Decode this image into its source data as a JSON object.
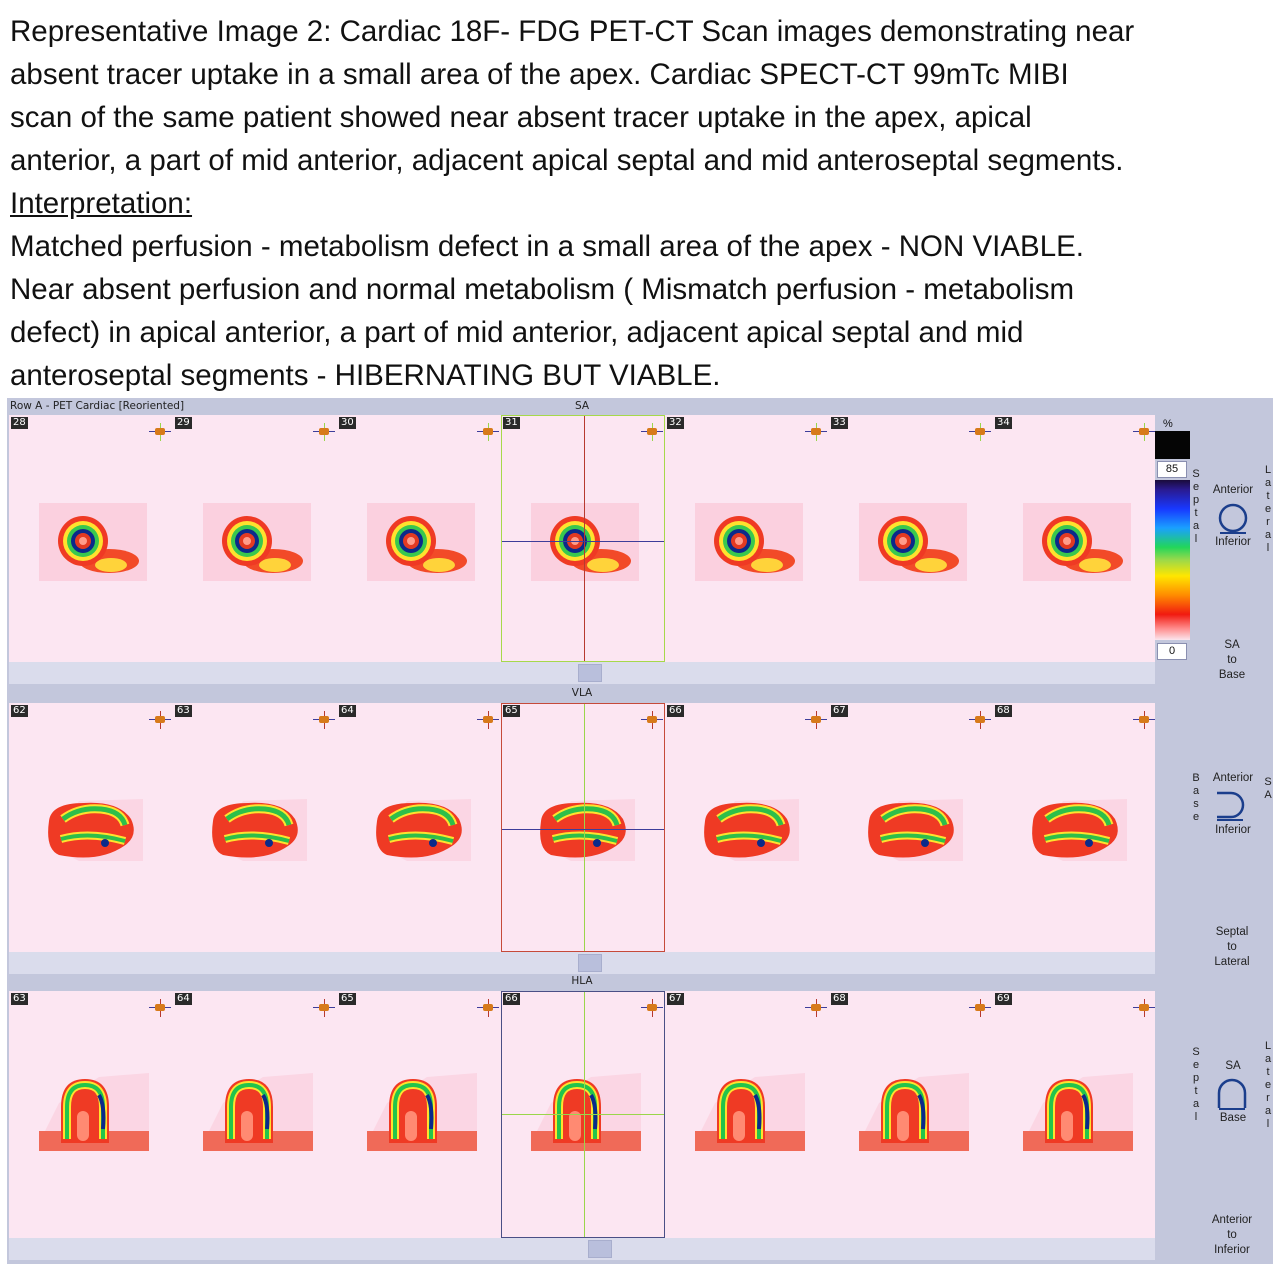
{
  "caption": {
    "lines": [
      "Representative Image 2: Cardiac 18F- FDG PET-CT Scan images demonstrating near",
      "absent  tracer uptake in a small area of the apex. Cardiac SPECT-CT 99mTc MIBI",
      "scan of  the same patient showed near absent tracer uptake in the apex, apical",
      "anterior, a part  of mid anterior, adjacent apical septal and mid anteroseptal segments."
    ],
    "interpretation_heading": "Interpretation:",
    "interpretation_lines": [
      "Matched perfusion - metabolism defect in a small area of the apex - NON VIABLE.",
      "Near absent perfusion and normal metabolism ( Mismatch perfusion - metabolism",
      "defect) in apical anterior, a part of mid anterior, adjacent apical septal and mid",
      "anteroseptal segments - HIBERNATING BUT VIABLE."
    ]
  },
  "viewer": {
    "row_label": "Row A - PET Cardiac [Reoriented]",
    "planes": [
      {
        "title": "SA",
        "slices": [
          "28",
          "29",
          "30",
          "31",
          "32",
          "33",
          "34"
        ],
        "selected_index": 3,
        "view": "sa"
      },
      {
        "title": "VLA",
        "slices": [
          "62",
          "63",
          "64",
          "65",
          "66",
          "67",
          "68"
        ],
        "selected_index": 3,
        "view": "vla"
      },
      {
        "title": "HLA",
        "slices": [
          "63",
          "64",
          "65",
          "66",
          "67",
          "68",
          "69"
        ],
        "selected_index": 3,
        "view": "hla"
      }
    ],
    "colorbar": {
      "unit": "%",
      "max": "85",
      "min": "0"
    },
    "orientation": {
      "sa": {
        "left": "Septal",
        "right": "Lateral",
        "top": "Anterior",
        "bottom": "Inferior",
        "control": [
          "SA",
          "to",
          "Base"
        ]
      },
      "vla": {
        "left": "Base",
        "right": "SA",
        "top": "Anterior",
        "bottom": "Inferior",
        "control": [
          "Septal",
          "to",
          "Lateral"
        ]
      },
      "hla": {
        "left": "Septal",
        "right": "Lateral",
        "top": "SA",
        "bottom": "Base",
        "control": [
          "Anterior",
          "to",
          "Inferior"
        ]
      }
    },
    "colors": {
      "sa_box": "#a6d94a",
      "vla_box": "#c64a3a",
      "hla_box": "#4a4f86",
      "v_cursor": "#b7392f",
      "h_cursor": "#3d3d9a",
      "green_cursor": "#9ad64a"
    }
  }
}
